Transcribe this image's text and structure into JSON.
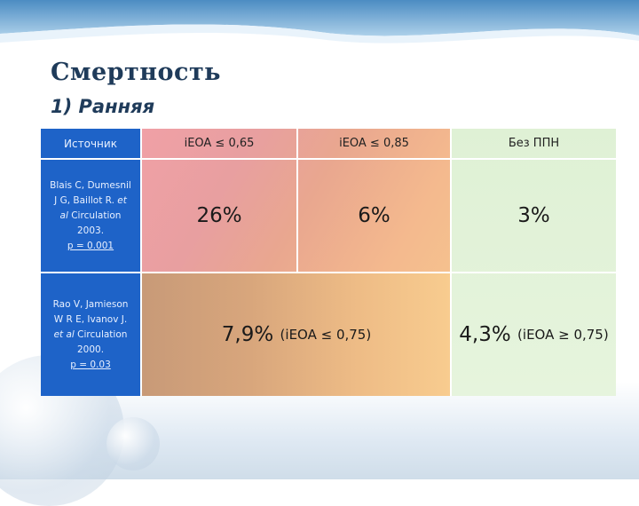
{
  "slide": {
    "title": "Смертность",
    "subtitle": "1) Ранняя"
  },
  "table": {
    "headers": {
      "source": "Источник",
      "col1": "iEOA ≤ 0,65",
      "col2": "iEOA ≤ 0,85",
      "col3": "Без ППН"
    },
    "rows": [
      {
        "source_lines": [
          "Blais C, Dumesnil",
          "J G, Baillot R. et",
          "al Circulation",
          "2003."
        ],
        "p_value": "p = 0.001",
        "col1": "26%",
        "col2": "6%",
        "col3": "3%"
      },
      {
        "source_lines": [
          "Rao V, Jamieson",
          "W R E, Ivanov J.",
          "et al Circulation",
          "2000."
        ],
        "p_value": "p = 0.03",
        "merged_value": "7,9%",
        "merged_note": "(iEOA ≤ 0,75)",
        "col3_value": "4,3%",
        "col3_note": "(iEOA ≥ 0,75)"
      }
    ]
  },
  "colors": {
    "title": "#1f3b5a",
    "source_column": "#1e63c8",
    "gradient_start": "#f0a0a6",
    "gradient_end": "#f6c98f",
    "green_column": "#dff1d5"
  }
}
